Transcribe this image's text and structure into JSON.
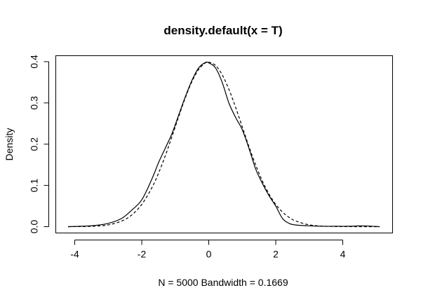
{
  "chart_data": {
    "type": "line",
    "title": "density.default(x = T)",
    "xlabel": "N = 5000   Bandwidth = 0.1669",
    "ylabel": "Density",
    "xlim": [
      -4.2,
      5.1
    ],
    "ylim": [
      0,
      0.4
    ],
    "x_ticks": [
      -4,
      -2,
      0,
      2,
      4
    ],
    "x_tick_labels": [
      "-4",
      "-2",
      "0",
      "2",
      "4"
    ],
    "y_ticks": [
      0.0,
      0.1,
      0.2,
      0.3,
      0.4
    ],
    "y_tick_labels": [
      "0.0",
      "0.1",
      "0.2",
      "0.3",
      "0.4"
    ],
    "grid": false,
    "series": [
      {
        "style": "solid",
        "x": [
          -4.2,
          -3.8,
          -3.4,
          -3.0,
          -2.6,
          -2.3,
          -2.0,
          -1.7,
          -1.5,
          -1.3,
          -1.1,
          -0.9,
          -0.7,
          -0.5,
          -0.3,
          -0.1,
          0.0,
          0.2,
          0.4,
          0.6,
          0.8,
          1.0,
          1.2,
          1.4,
          1.6,
          1.8,
          2.0,
          2.2,
          2.4,
          2.6,
          3.0,
          3.4,
          3.8,
          4.2,
          4.6,
          5.1
        ],
        "y": [
          0.0,
          0.001,
          0.003,
          0.008,
          0.02,
          0.04,
          0.065,
          0.115,
          0.155,
          0.19,
          0.225,
          0.27,
          0.315,
          0.355,
          0.385,
          0.398,
          0.397,
          0.385,
          0.35,
          0.3,
          0.265,
          0.235,
          0.19,
          0.14,
          0.105,
          0.075,
          0.05,
          0.02,
          0.008,
          0.004,
          0.002,
          0.001,
          0.001,
          0.001,
          0.002,
          0.0
        ]
      },
      {
        "style": "dashed",
        "x": [
          -4.2,
          -3.8,
          -3.4,
          -3.0,
          -2.6,
          -2.3,
          -2.0,
          -1.7,
          -1.5,
          -1.3,
          -1.1,
          -0.9,
          -0.7,
          -0.5,
          -0.3,
          -0.1,
          0.0,
          0.2,
          0.4,
          0.6,
          0.8,
          1.0,
          1.2,
          1.4,
          1.6,
          1.8,
          2.0,
          2.2,
          2.4,
          2.6,
          3.0,
          3.4,
          3.8,
          4.2,
          4.6,
          5.1
        ],
        "y": [
          0.0,
          0.0003,
          0.0013,
          0.0044,
          0.0136,
          0.0283,
          0.054,
          0.094,
          0.1295,
          0.1714,
          0.2179,
          0.2661,
          0.3123,
          0.3521,
          0.3814,
          0.397,
          0.3989,
          0.391,
          0.3683,
          0.3332,
          0.2897,
          0.242,
          0.1942,
          0.1497,
          0.1109,
          0.079,
          0.054,
          0.0355,
          0.0224,
          0.0136,
          0.0044,
          0.0012,
          0.0003,
          0.0001,
          0.0,
          0.0
        ]
      }
    ]
  }
}
